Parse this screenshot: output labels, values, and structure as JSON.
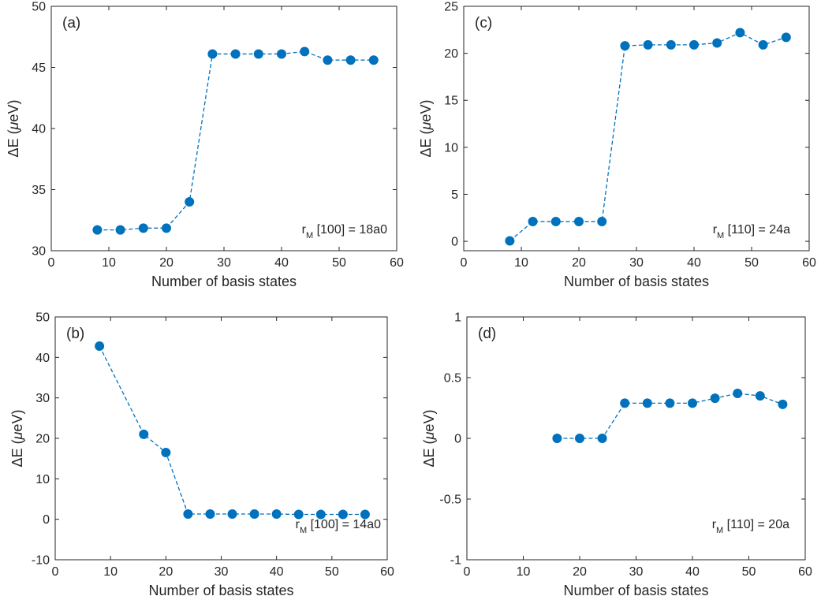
{
  "series_color": "#0072BD",
  "chart_data": [
    {
      "type": "line",
      "marker": "circle",
      "line_style": "dashed",
      "panel_label": "(a)",
      "xlabel": "Number of basis states",
      "ylabel_main": "ΔE (",
      "ylabel_unit": "μeV",
      "ylabel_end": ")",
      "xlim": [
        0,
        60
      ],
      "ylim": [
        30,
        50
      ],
      "x_ticks": [
        0,
        10,
        20,
        30,
        40,
        50,
        60
      ],
      "y_ticks": [
        30,
        35,
        40,
        45,
        50
      ],
      "x_tick_labels": [
        "0",
        "10",
        "20",
        "30",
        "40",
        "50",
        "60"
      ],
      "y_tick_labels": [
        "30",
        "35",
        "40",
        "45",
        "50"
      ],
      "grid": false,
      "x": [
        8,
        12,
        16,
        20,
        24,
        28,
        32,
        36,
        40,
        44,
        48,
        52,
        56
      ],
      "y": [
        31.7,
        31.7,
        31.85,
        31.85,
        34.0,
        46.1,
        46.1,
        46.1,
        46.1,
        46.3,
        45.6,
        45.6,
        45.6
      ],
      "annotation": {
        "r": "r",
        "sub": "M",
        "rest": " [100] = 18a0"
      }
    },
    {
      "type": "line",
      "marker": "circle",
      "line_style": "dashed",
      "panel_label": "(c)",
      "xlabel": "Number of basis states",
      "ylabel_main": "ΔE (",
      "ylabel_unit": "μeV",
      "ylabel_end": ")",
      "xlim": [
        0,
        60
      ],
      "ylim": [
        -1,
        25
      ],
      "x_ticks": [
        0,
        10,
        20,
        30,
        40,
        50,
        60
      ],
      "y_ticks": [
        0,
        5,
        10,
        15,
        20,
        25
      ],
      "x_tick_labels": [
        "0",
        "10",
        "20",
        "30",
        "40",
        "50",
        "60"
      ],
      "y_tick_labels": [
        "0",
        "5",
        "10",
        "15",
        "20",
        "25"
      ],
      "grid": false,
      "x": [
        8,
        12,
        16,
        20,
        24,
        28,
        32,
        36,
        40,
        44,
        48,
        52,
        56
      ],
      "y": [
        0.05,
        2.1,
        2.1,
        2.1,
        2.1,
        20.8,
        20.9,
        20.9,
        20.9,
        21.1,
        22.2,
        20.9,
        21.7
      ],
      "annotation": {
        "r": "r",
        "sub": "M",
        "rest": " [110] = 24a"
      }
    },
    {
      "type": "line",
      "marker": "circle",
      "line_style": "dashed",
      "panel_label": "(b)",
      "xlabel": "Number of basis states",
      "ylabel_main": "ΔE (",
      "ylabel_unit": "μeV",
      "ylabel_end": ")",
      "xlim": [
        0,
        60
      ],
      "ylim": [
        -10,
        50
      ],
      "x_ticks": [
        0,
        10,
        20,
        30,
        40,
        50,
        60
      ],
      "y_ticks": [
        -10,
        0,
        10,
        20,
        30,
        40,
        50
      ],
      "x_tick_labels": [
        "0",
        "10",
        "20",
        "30",
        "40",
        "50",
        "60"
      ],
      "y_tick_labels": [
        "-10",
        "0",
        "10",
        "20",
        "30",
        "40",
        "50"
      ],
      "grid": false,
      "x": [
        8,
        16,
        20,
        24,
        28,
        32,
        36,
        40,
        44,
        48,
        52,
        56
      ],
      "y": [
        42.8,
        21.0,
        16.5,
        1.3,
        1.3,
        1.3,
        1.3,
        1.3,
        1.2,
        1.2,
        1.2,
        1.2
      ],
      "annotation": {
        "r": "r",
        "sub": "M",
        "rest": " [100] = 14a0"
      }
    },
    {
      "type": "line",
      "marker": "circle",
      "line_style": "dashed",
      "panel_label": "(d)",
      "xlabel": "Number of basis states",
      "ylabel_main": "ΔE (",
      "ylabel_unit": "μeV",
      "ylabel_end": ")",
      "xlim": [
        0,
        60
      ],
      "ylim": [
        -1,
        1
      ],
      "x_ticks": [
        0,
        10,
        20,
        30,
        40,
        50,
        60
      ],
      "y_ticks": [
        -1,
        -0.5,
        0,
        0.5,
        1
      ],
      "x_tick_labels": [
        "0",
        "10",
        "20",
        "30",
        "40",
        "50",
        "60"
      ],
      "y_tick_labels": [
        "-1",
        "-0.5",
        "0",
        "0.5",
        "1"
      ],
      "grid": false,
      "x": [
        16,
        20,
        24,
        28,
        32,
        36,
        40,
        44,
        48,
        52,
        56
      ],
      "y": [
        0.0,
        0.0,
        0.0,
        0.29,
        0.29,
        0.29,
        0.29,
        0.33,
        0.37,
        0.35,
        0.28
      ],
      "annotation": {
        "r": "r",
        "sub": "M",
        "rest": " [110] = 20a"
      }
    }
  ]
}
